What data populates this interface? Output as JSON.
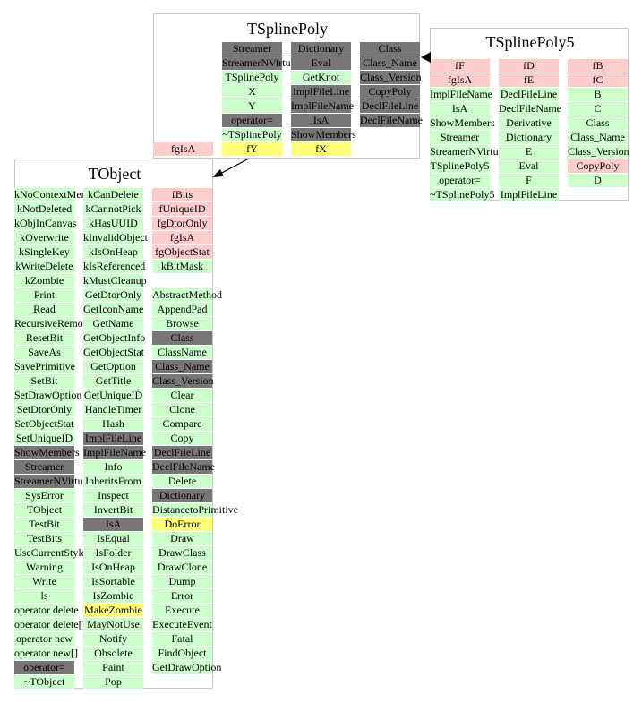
{
  "colors": {
    "green": "#ccffcc",
    "dark": "#777777",
    "pink": "#ffcccc",
    "yellow": "#ffff77",
    "border": "#c8c8c8"
  },
  "tsplinepoly": {
    "title": "TSplinePoly",
    "col1": [
      {
        "t": "Streamer",
        "c": "k"
      },
      {
        "t": "StreamerNVirtual",
        "c": "k"
      },
      {
        "t": "TSplinePoly",
        "c": "g"
      },
      {
        "t": "X",
        "c": "g"
      },
      {
        "t": "Y",
        "c": "g"
      },
      {
        "t": "operator=",
        "c": "k"
      },
      {
        "t": "~TSplinePoly",
        "c": "g"
      },
      {
        "t": "fY",
        "c": "y"
      }
    ],
    "col2": [
      {
        "t": "Dictionary",
        "c": "k"
      },
      {
        "t": "Eval",
        "c": "k"
      },
      {
        "t": "GetKnot",
        "c": "g"
      },
      {
        "t": "ImplFileLine",
        "c": "k"
      },
      {
        "t": "ImplFileName",
        "c": "k"
      },
      {
        "t": "IsA",
        "c": "k"
      },
      {
        "t": "ShowMembers",
        "c": "k"
      },
      {
        "t": "fX",
        "c": "y"
      }
    ],
    "col3": [
      {
        "t": "Class",
        "c": "k"
      },
      {
        "t": "Class_Name",
        "c": "k"
      },
      {
        "t": "Class_Version",
        "c": "k"
      },
      {
        "t": "CopyPoly",
        "c": "k"
      },
      {
        "t": "DeclFileLine",
        "c": "k"
      },
      {
        "t": "DeclFileName",
        "c": "k"
      }
    ],
    "extra": {
      "t": "fgIsA",
      "c": "p"
    }
  },
  "tsplinepoly5": {
    "title": "TSplinePoly5",
    "col1": [
      {
        "t": "fF",
        "c": "p"
      },
      {
        "t": "fgIsA",
        "c": "p"
      },
      {
        "t": "ImplFileName",
        "c": "g"
      },
      {
        "t": "IsA",
        "c": "g"
      },
      {
        "t": "ShowMembers",
        "c": "g"
      },
      {
        "t": "Streamer",
        "c": "g"
      },
      {
        "t": "StreamerNVirtual",
        "c": "g"
      },
      {
        "t": "TSplinePoly5",
        "c": "g"
      },
      {
        "t": "operator=",
        "c": "g"
      },
      {
        "t": "~TSplinePoly5",
        "c": "g"
      }
    ],
    "col2": [
      {
        "t": "fD",
        "c": "p"
      },
      {
        "t": "fE",
        "c": "p"
      },
      {
        "t": "DeclFileLine",
        "c": "g"
      },
      {
        "t": "DeclFileName",
        "c": "g"
      },
      {
        "t": "Derivative",
        "c": "g"
      },
      {
        "t": "Dictionary",
        "c": "g"
      },
      {
        "t": "E",
        "c": "g"
      },
      {
        "t": "Eval",
        "c": "g"
      },
      {
        "t": "F",
        "c": "g"
      },
      {
        "t": "ImplFileLine",
        "c": "g"
      }
    ],
    "col3": [
      {
        "t": "fB",
        "c": "p"
      },
      {
        "t": "fC",
        "c": "p"
      },
      {
        "t": "B",
        "c": "g"
      },
      {
        "t": "C",
        "c": "g"
      },
      {
        "t": "Class",
        "c": "g"
      },
      {
        "t": "Class_Name",
        "c": "g"
      },
      {
        "t": "Class_Version",
        "c": "g"
      },
      {
        "t": "CopyPoly",
        "c": "p"
      },
      {
        "t": "D",
        "c": "g"
      }
    ]
  },
  "tobject": {
    "title": "TObject",
    "col1": [
      {
        "t": "kNoContextMenu",
        "c": "g"
      },
      {
        "t": "kNotDeleted",
        "c": "g"
      },
      {
        "t": "kObjInCanvas",
        "c": "g"
      },
      {
        "t": "kOverwrite",
        "c": "g"
      },
      {
        "t": "kSingleKey",
        "c": "g"
      },
      {
        "t": "kWriteDelete",
        "c": "g"
      },
      {
        "t": "kZombie",
        "c": "g"
      },
      {
        "t": "Print",
        "c": "g"
      },
      {
        "t": "Read",
        "c": "g"
      },
      {
        "t": "RecursiveRemove",
        "c": "g"
      },
      {
        "t": "ResetBit",
        "c": "g"
      },
      {
        "t": "SaveAs",
        "c": "g"
      },
      {
        "t": "SavePrimitive",
        "c": "g"
      },
      {
        "t": "SetBit",
        "c": "g"
      },
      {
        "t": "SetDrawOption",
        "c": "g"
      },
      {
        "t": "SetDtorOnly",
        "c": "g"
      },
      {
        "t": "SetObjectStat",
        "c": "g"
      },
      {
        "t": "SetUniqueID",
        "c": "g"
      },
      {
        "t": "ShowMembers",
        "c": "k"
      },
      {
        "t": "Streamer",
        "c": "k"
      },
      {
        "t": "StreamerNVirtual",
        "c": "k"
      },
      {
        "t": "SysError",
        "c": "g"
      },
      {
        "t": "TObject",
        "c": "g"
      },
      {
        "t": "TestBit",
        "c": "g"
      },
      {
        "t": "TestBits",
        "c": "g"
      },
      {
        "t": "UseCurrentStyle",
        "c": "g"
      },
      {
        "t": "Warning",
        "c": "g"
      },
      {
        "t": "Write",
        "c": "g"
      },
      {
        "t": "ls",
        "c": "g"
      },
      {
        "t": "operator delete",
        "c": "g"
      },
      {
        "t": "operator delete[]",
        "c": "g"
      },
      {
        "t": "operator new",
        "c": "g"
      },
      {
        "t": "operator new[]",
        "c": "g"
      },
      {
        "t": "operator=",
        "c": "k"
      },
      {
        "t": "~TObject",
        "c": "g"
      }
    ],
    "col2": [
      {
        "t": "kCanDelete",
        "c": "g"
      },
      {
        "t": "kCannotPick",
        "c": "g"
      },
      {
        "t": "kHasUUID",
        "c": "g"
      },
      {
        "t": "kInvalidObject",
        "c": "g"
      },
      {
        "t": "kIsOnHeap",
        "c": "g"
      },
      {
        "t": "kIsReferenced",
        "c": "g"
      },
      {
        "t": "kMustCleanup",
        "c": "g"
      },
      {
        "t": "GetDtorOnly",
        "c": "g"
      },
      {
        "t": "GetIconName",
        "c": "g"
      },
      {
        "t": "GetName",
        "c": "g"
      },
      {
        "t": "GetObjectInfo",
        "c": "g"
      },
      {
        "t": "GetObjectStat",
        "c": "g"
      },
      {
        "t": "GetOption",
        "c": "g"
      },
      {
        "t": "GetTitle",
        "c": "g"
      },
      {
        "t": "GetUniqueID",
        "c": "g"
      },
      {
        "t": "HandleTimer",
        "c": "g"
      },
      {
        "t": "Hash",
        "c": "g"
      },
      {
        "t": "ImplFileLine",
        "c": "k"
      },
      {
        "t": "ImplFileName",
        "c": "k"
      },
      {
        "t": "Info",
        "c": "g"
      },
      {
        "t": "InheritsFrom",
        "c": "g"
      },
      {
        "t": "Inspect",
        "c": "g"
      },
      {
        "t": "InvertBit",
        "c": "g"
      },
      {
        "t": "IsA",
        "c": "k"
      },
      {
        "t": "IsEqual",
        "c": "g"
      },
      {
        "t": "IsFolder",
        "c": "g"
      },
      {
        "t": "IsOnHeap",
        "c": "g"
      },
      {
        "t": "IsSortable",
        "c": "g"
      },
      {
        "t": "IsZombie",
        "c": "g"
      },
      {
        "t": "MakeZombie",
        "c": "y"
      },
      {
        "t": "MayNotUse",
        "c": "g"
      },
      {
        "t": "Notify",
        "c": "g"
      },
      {
        "t": "Obsolete",
        "c": "g"
      },
      {
        "t": "Paint",
        "c": "g"
      },
      {
        "t": "Pop",
        "c": "g"
      }
    ],
    "col3": [
      {
        "t": "fBits",
        "c": "p"
      },
      {
        "t": "fUniqueID",
        "c": "p"
      },
      {
        "t": "fgDtorOnly",
        "c": "p"
      },
      {
        "t": "fgIsA",
        "c": "p"
      },
      {
        "t": "fgObjectStat",
        "c": "p"
      },
      {
        "t": "kBitMask",
        "c": "g"
      },
      {
        "t": "",
        "c": "n"
      },
      {
        "t": "AbstractMethod",
        "c": "g"
      },
      {
        "t": "AppendPad",
        "c": "g"
      },
      {
        "t": "Browse",
        "c": "g"
      },
      {
        "t": "Class",
        "c": "k"
      },
      {
        "t": "ClassName",
        "c": "g"
      },
      {
        "t": "Class_Name",
        "c": "k"
      },
      {
        "t": "Class_Version",
        "c": "k"
      },
      {
        "t": "Clear",
        "c": "g"
      },
      {
        "t": "Clone",
        "c": "g"
      },
      {
        "t": "Compare",
        "c": "g"
      },
      {
        "t": "Copy",
        "c": "g"
      },
      {
        "t": "DeclFileLine",
        "c": "k"
      },
      {
        "t": "DeclFileName",
        "c": "k"
      },
      {
        "t": "Delete",
        "c": "g"
      },
      {
        "t": "Dictionary",
        "c": "k"
      },
      {
        "t": "DistancetoPrimitive",
        "c": "g"
      },
      {
        "t": "DoError",
        "c": "y"
      },
      {
        "t": "Draw",
        "c": "g"
      },
      {
        "t": "DrawClass",
        "c": "g"
      },
      {
        "t": "DrawClone",
        "c": "g"
      },
      {
        "t": "Dump",
        "c": "g"
      },
      {
        "t": "Error",
        "c": "g"
      },
      {
        "t": "Execute",
        "c": "g"
      },
      {
        "t": "ExecuteEvent",
        "c": "g"
      },
      {
        "t": "Fatal",
        "c": "g"
      },
      {
        "t": "FindObject",
        "c": "g"
      },
      {
        "t": "GetDrawOption",
        "c": "g"
      }
    ]
  }
}
